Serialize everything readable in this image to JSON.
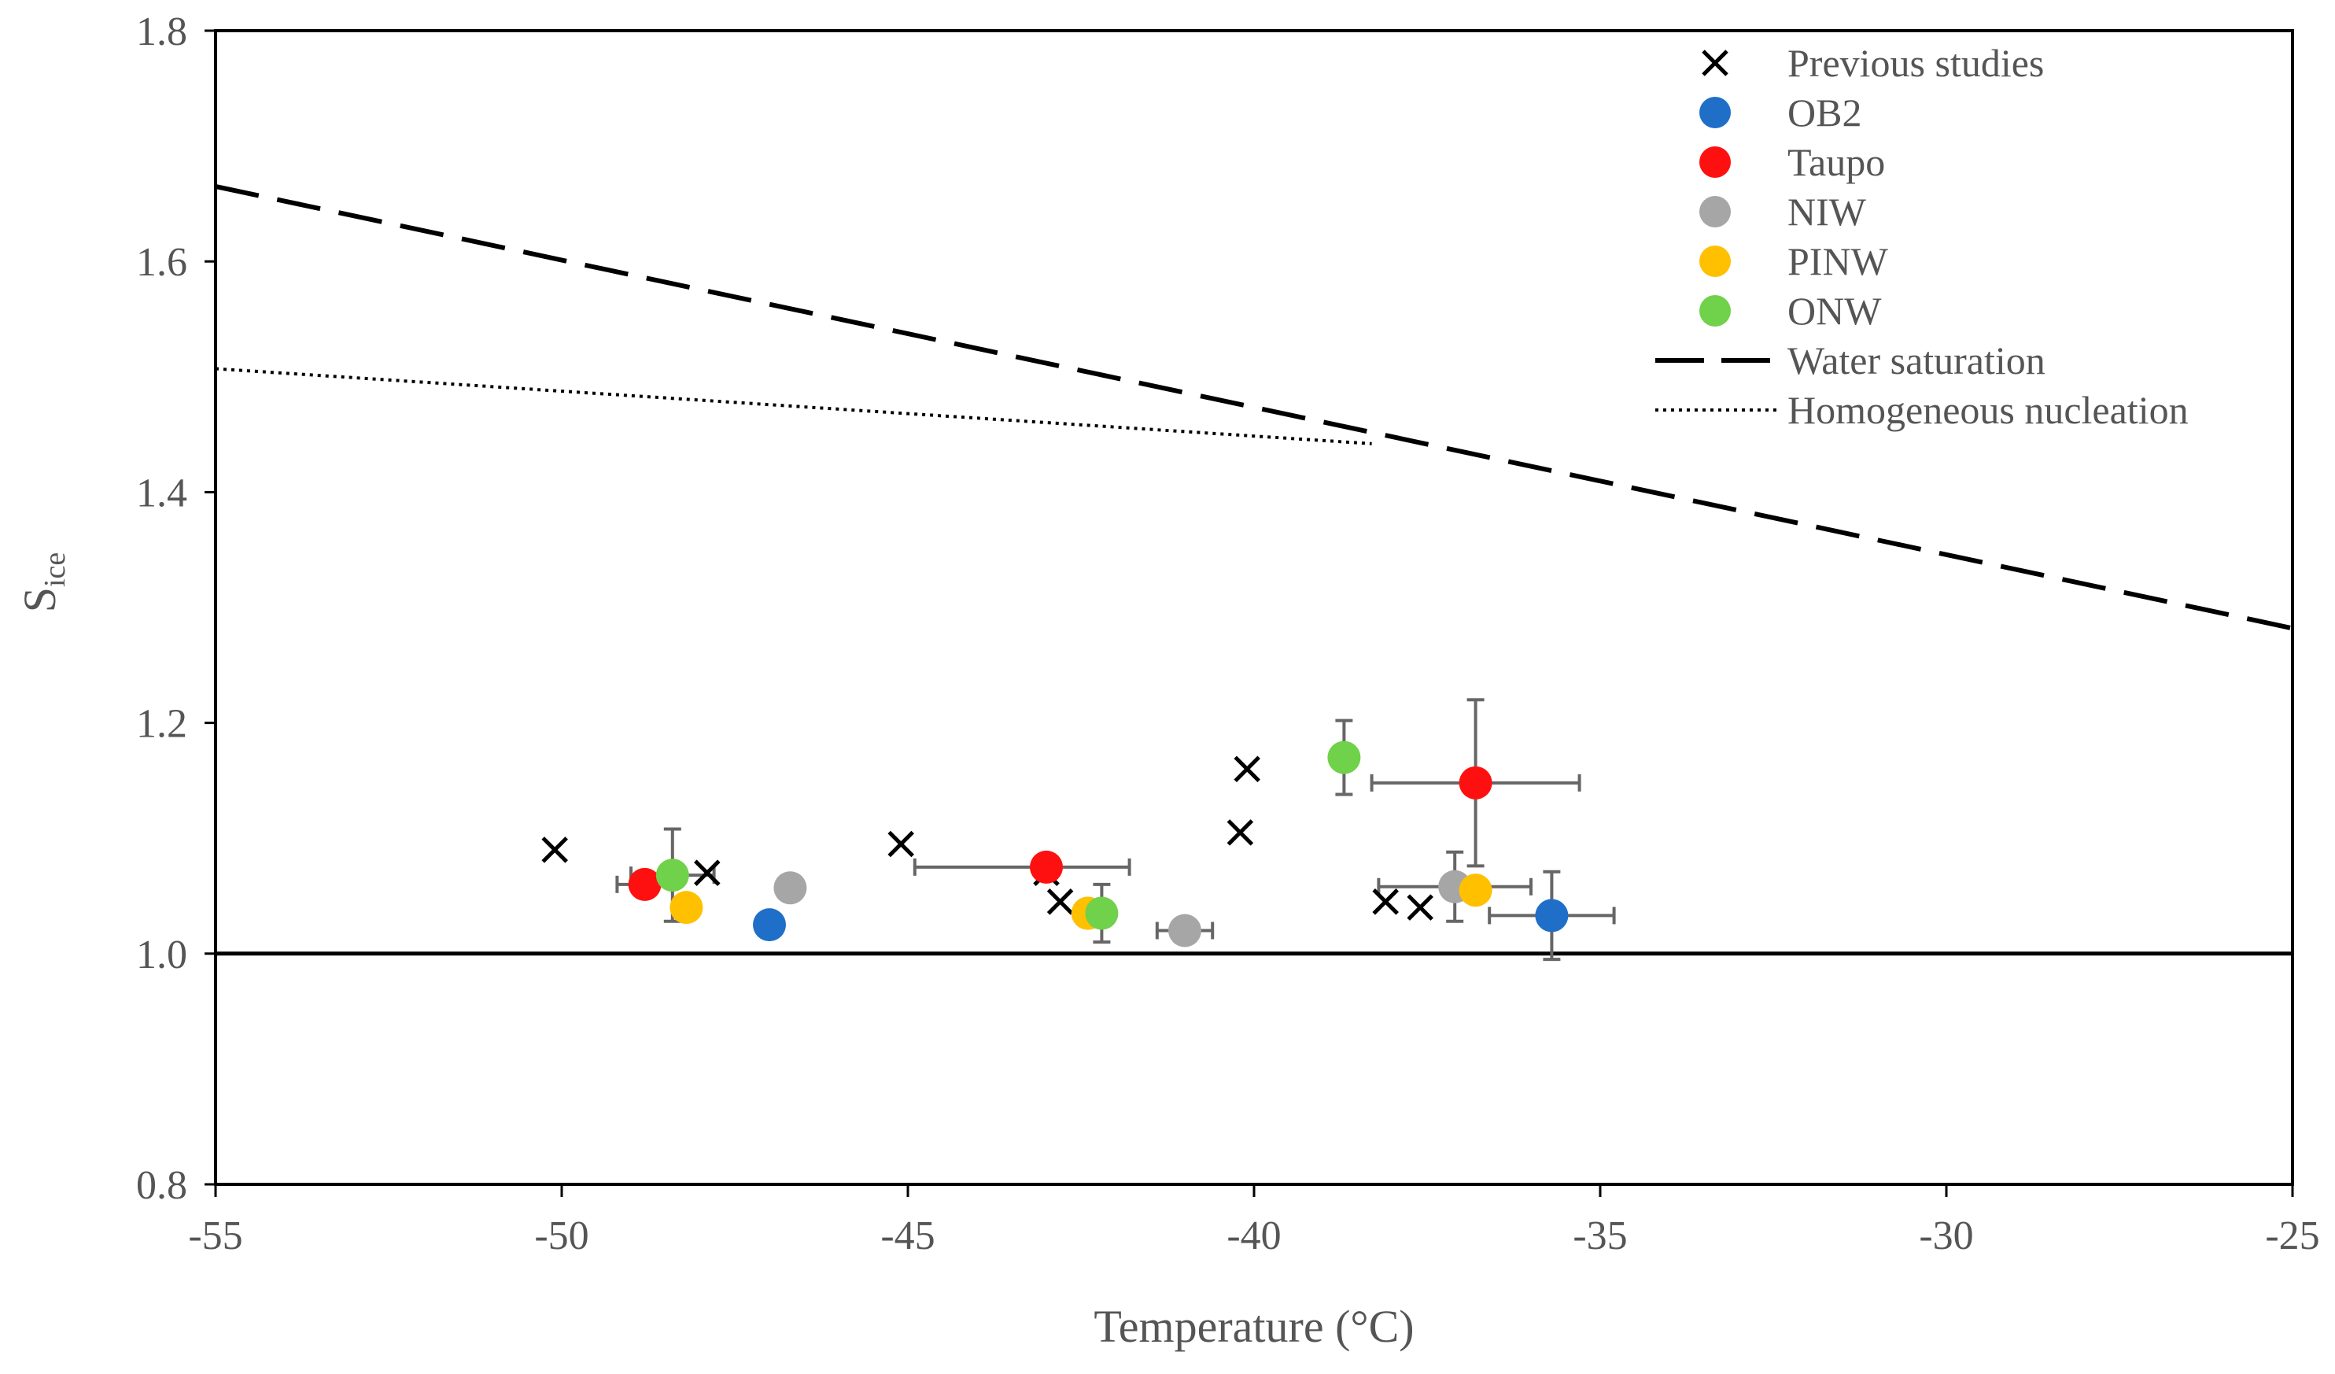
{
  "chart_data": {
    "type": "scatter",
    "title": "",
    "xlabel": "Temperature (°C)",
    "ylabel": "S",
    "ylabel_subscript": "ice",
    "xlim": [
      -55,
      -25
    ],
    "ylim": [
      0.8,
      1.8
    ],
    "x_ticks": [
      -55,
      -50,
      -45,
      -40,
      -35,
      -30,
      -25
    ],
    "x_tick_labels": [
      "-55",
      "-50",
      "-45",
      "-40",
      "-35",
      "-30",
      "-25"
    ],
    "y_ticks": [
      0.8,
      1.0,
      1.2,
      1.4,
      1.6,
      1.8
    ],
    "y_tick_labels": [
      "0.8",
      "1.0",
      "1.2",
      "1.4",
      "1.6",
      "1.8"
    ],
    "grid": false,
    "legend_position": "top-right",
    "series": [
      {
        "name": "Previous studies",
        "marker": "x",
        "color": "#000000",
        "points": [
          {
            "x": -50.1,
            "y": 1.09
          },
          {
            "x": -47.9,
            "y": 1.07
          },
          {
            "x": -45.1,
            "y": 1.095
          },
          {
            "x": -43.0,
            "y": 1.07
          },
          {
            "x": -42.8,
            "y": 1.045
          },
          {
            "x": -40.1,
            "y": 1.16
          },
          {
            "x": -40.2,
            "y": 1.105
          },
          {
            "x": -38.1,
            "y": 1.045
          },
          {
            "x": -37.6,
            "y": 1.04
          }
        ]
      },
      {
        "name": "OB2",
        "marker": "circle",
        "color": "#1f6fc9",
        "points": [
          {
            "x": -47.0,
            "y": 1.025
          },
          {
            "x": -35.7,
            "y": 1.033,
            "xerr": 0.9,
            "yerr": 0.038
          }
        ]
      },
      {
        "name": "Taupo",
        "marker": "circle",
        "color": "#ff1010",
        "points": [
          {
            "x": -48.8,
            "y": 1.06,
            "xerr": 0.4
          },
          {
            "x": -43.0,
            "y": 1.075,
            "xerr_minus": 1.9,
            "xerr_plus": 1.2
          },
          {
            "x": -36.8,
            "y": 1.148,
            "xerr": 1.5,
            "yerr": 0.072
          }
        ]
      },
      {
        "name": "NIW",
        "marker": "circle",
        "color": "#a6a6a6",
        "points": [
          {
            "x": -46.7,
            "y": 1.057
          },
          {
            "x": -42.4,
            "y": 1.035
          },
          {
            "x": -41.0,
            "y": 1.02,
            "xerr": 0.4
          },
          {
            "x": -37.1,
            "y": 1.058,
            "xerr": 1.1,
            "yerr": 0.03
          }
        ]
      },
      {
        "name": "PINW",
        "marker": "circle",
        "color": "#ffc000",
        "points": [
          {
            "x": -48.2,
            "y": 1.04
          },
          {
            "x": -42.4,
            "y": 1.035
          },
          {
            "x": -36.8,
            "y": 1.055
          }
        ]
      },
      {
        "name": "ONW",
        "marker": "circle",
        "color": "#70d14a",
        "points": [
          {
            "x": -48.4,
            "y": 1.068,
            "xerr": 0.6,
            "yerr": 0.04
          },
          {
            "x": -42.2,
            "y": 1.035,
            "yerr": 0.025
          },
          {
            "x": -38.7,
            "y": 1.17,
            "yerr": 0.032
          }
        ]
      }
    ],
    "lines": [
      {
        "name": "Water saturation",
        "style": "dashed",
        "color": "#000000",
        "x": [
          -55,
          -25
        ],
        "y": [
          1.665,
          1.282
        ]
      },
      {
        "name": "Homogeneous nucleation",
        "style": "dotted",
        "color": "#000000",
        "x": [
          -55,
          -38.3
        ],
        "y": [
          1.507,
          1.442
        ]
      },
      {
        "name": "Ice saturation",
        "style": "solid",
        "color": "#000000",
        "x": [
          -55,
          -25
        ],
        "y": [
          1.0,
          1.0
        ],
        "show_in_legend": false
      }
    ],
    "legend_entries": [
      "Previous studies",
      "OB2",
      "Taupo",
      "NIW",
      "PINW",
      "ONW",
      "Water saturation",
      "Homogeneous nucleation"
    ]
  }
}
